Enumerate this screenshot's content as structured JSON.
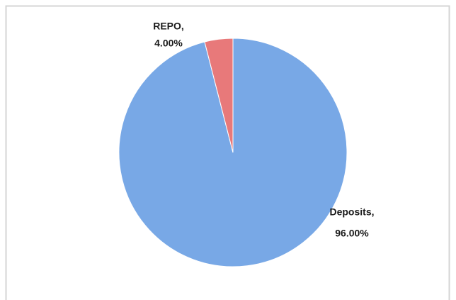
{
  "chart_data": {
    "type": "pie",
    "categories": [
      "Deposits,",
      "REPO,"
    ],
    "values": [
      96,
      4
    ],
    "value_labels": [
      "96.00%",
      "4.00%"
    ],
    "colors": [
      "#78a8e6",
      "#e8797a"
    ]
  }
}
